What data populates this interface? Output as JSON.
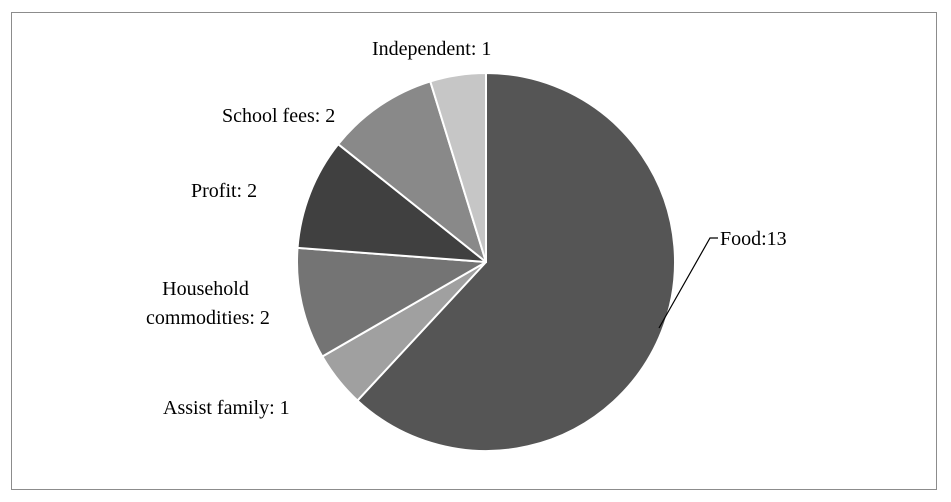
{
  "chart_data": {
    "type": "pie",
    "categories": [
      "Food",
      "Assist family",
      "Household commodities",
      "Profit",
      "School fees",
      "Independent"
    ],
    "values": [
      13,
      1,
      2,
      2,
      2,
      1
    ],
    "labels": [
      "Food:13",
      "Assist family: 1",
      "Household commodities: 2",
      "Profit: 2",
      "School fees: 2",
      "Independent: 1"
    ],
    "colors": [
      "#555555",
      "#a0a0a0",
      "#747474",
      "#404040",
      "#898989",
      "#c6c6c6"
    ],
    "start": "12 o'clock",
    "direction": "clockwise",
    "legend": "none"
  }
}
